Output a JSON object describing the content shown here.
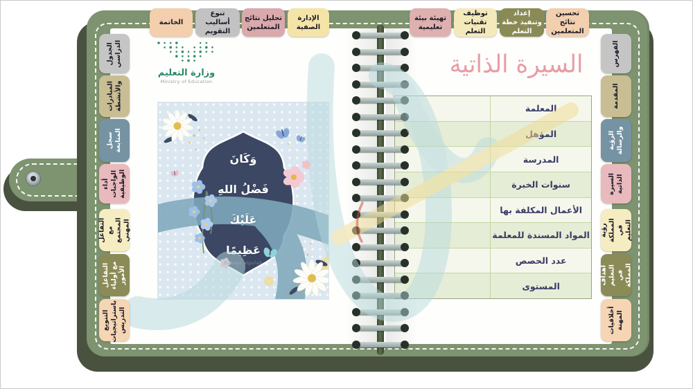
{
  "colors": {
    "cover_green": "#7e9370",
    "cover_shadow": "#49523f",
    "title_pink": "#e79da5",
    "table_row_light": "#f5f7ec",
    "table_row_green": "#e5edd6",
    "verse_navy": "#3c4763",
    "watermark_teal": "#b5d8dc",
    "watermark_yellow": "#f0dd95",
    "logo_green": "#2c8a6e"
  },
  "top_tabs": [
    {
      "label": "الخاتمة",
      "bg": "#f4cfad",
      "fg": "#1c1c28"
    },
    {
      "label": "تنوع أساليب التقويم",
      "bg": "#c2c2c2",
      "fg": "#1c1c28"
    },
    {
      "label": "تحليل نتائج المتعلمين",
      "bg": "#d9a9ab",
      "fg": "#1c1c28"
    },
    {
      "label": "الإدارة الصفية",
      "bg": "#f4e4a8",
      "fg": "#1c1c28"
    },
    {
      "label": "تهيئة بيئة تعليمية",
      "bg": "#dfb0b0",
      "fg": "#1c1c28"
    },
    {
      "label": "توظيف تقنيات التعلم",
      "bg": "#f4e9bb",
      "fg": "#1c1c28"
    },
    {
      "label": "إعداد وتنفيذ خطة التعلم",
      "bg": "#8a8a56",
      "fg": "#ffffff"
    },
    {
      "label": "تحسين نتائج المتعلمين",
      "bg": "#f2cfae",
      "fg": "#1c1c28"
    }
  ],
  "right_tabs": [
    {
      "label": "الفهرس",
      "bg": "#c5c5c5",
      "fg": "#1c1c28"
    },
    {
      "label": "المقدمة",
      "bg": "#c9bd94",
      "fg": "#1c1c28"
    },
    {
      "label": "الرؤية والرسالة",
      "bg": "#7593a3",
      "fg": "#ffffff"
    },
    {
      "label": "السيرة الذاتية",
      "bg": "#e9babd",
      "fg": "#1c1c28"
    },
    {
      "label": "رؤية المملكة في التعليم",
      "bg": "#f6ecc1",
      "fg": "#1c1c28"
    },
    {
      "label": "أهداف التعليم في المملكة",
      "bg": "#8b8b57",
      "fg": "#ffffff"
    },
    {
      "label": "أخلاقيات المهنة",
      "bg": "#f5d5b3",
      "fg": "#1c1c28"
    }
  ],
  "left_tabs": [
    {
      "label": "الجدول الدراسي",
      "bg": "#c5c5c5",
      "fg": "#1c1c28"
    },
    {
      "label": "المبادرات والأنشطة",
      "bg": "#c9bd94",
      "fg": "#1c1c28"
    },
    {
      "label": "سجل المتابعة",
      "bg": "#7593a3",
      "fg": "#ffffff"
    },
    {
      "label": "أداء الواجبات الوظيفية",
      "bg": "#e9babd",
      "fg": "#1c1c28"
    },
    {
      "label": "التفاعل مع المجتمع المهني",
      "bg": "#f6ecc1",
      "fg": "#1c1c28"
    },
    {
      "label": "التفاعل مع أولياء الأمور",
      "bg": "#8b8b57",
      "fg": "#ffffff"
    },
    {
      "label": "التنويع باستراتيجيات التدريس",
      "bg": "#f5d5b3",
      "fg": "#1c1c28"
    }
  ],
  "logo": {
    "name_ar": "وزارة التعليم",
    "name_en": "Ministry of Education"
  },
  "left_page": {
    "verse_lines": [
      "وَكَانَ",
      "فَضْلُ اللهِ",
      "عَلَيْكَ",
      "عَظِيمًا"
    ],
    "signature": "Rubayi algulab"
  },
  "right_page": {
    "title": "السيرة الذاتية",
    "table": {
      "rows": [
        "المعلمة",
        "المؤهل",
        "المدرسة",
        "سنوات الخبرة",
        "الأعمال المكلفة بها",
        "المواد المسندة للمعلمة",
        "عدد الحصص",
        "المستوى"
      ]
    }
  }
}
